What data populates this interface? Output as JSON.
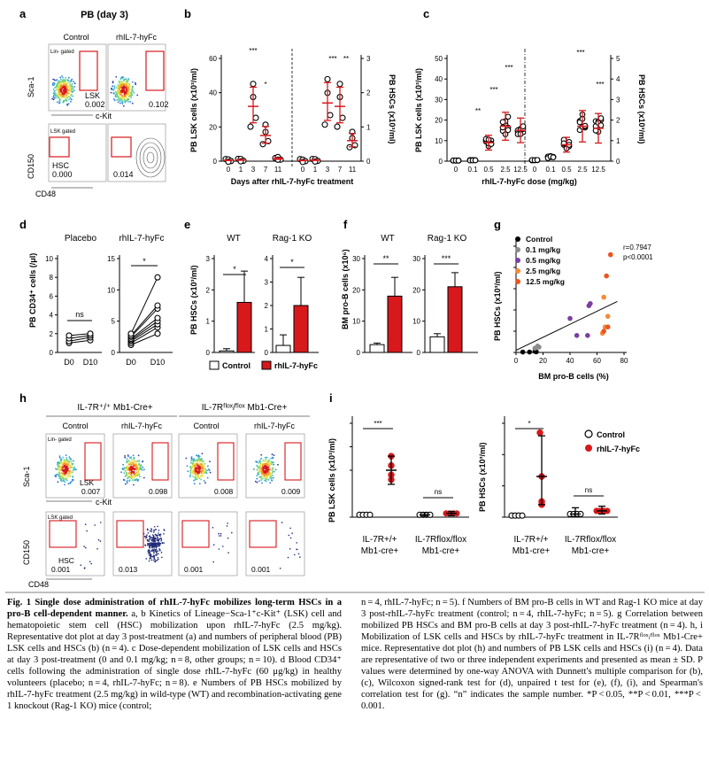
{
  "panel_letters": {
    "a": "a",
    "b": "b",
    "c": "c",
    "d": "d",
    "e": "e",
    "f": "f",
    "g": "g",
    "h": "h",
    "i": "i"
  },
  "panel_a": {
    "title": "PB (day 3)",
    "col_labels": [
      "Control",
      "rhIL-7-hyFc"
    ],
    "top_gate_label": "Lin- gated",
    "lsk_label": "LSK",
    "lsk_values": [
      "0.002",
      "0.102"
    ],
    "y_axis_top": "Sca-1",
    "x_axis_top": "c-Kit",
    "bottom_gate_label": "LSK gated",
    "hsc_label": "HSC",
    "hsc_values": [
      "0.000",
      "0.014"
    ],
    "y_axis_bottom": "CD150",
    "x_axis_bottom": "CD48"
  },
  "panel_b": {
    "y_left_label": "PB LSK cells (x10³/ml)",
    "y_right_label": "PB HSCs (x10³/ml)",
    "x_label": "Days after rhIL-7-hyFc treatment",
    "y_left_ticks": [
      "0",
      "20",
      "40",
      "60"
    ],
    "y_right_ticks": [
      "0",
      "1",
      "2",
      "3"
    ],
    "x_ticks": [
      "0",
      "1",
      "3",
      "7",
      "11"
    ],
    "stars": [
      "***",
      "*",
      "***",
      "**"
    ]
  },
  "panel_c": {
    "y_left_label": "PB LSK cells (x10³/ml)",
    "y_right_label": "PB HSCs (x10³/ml)",
    "x_label": "rhIL-7-hyFc dose (mg/kg)",
    "y_left_ticks": [
      "0",
      "10",
      "20",
      "30",
      "40",
      "50"
    ],
    "y_right_ticks": [
      "0",
      "1",
      "2",
      "3",
      "4",
      "5"
    ],
    "x_ticks": [
      "0",
      "0.1",
      "0.5",
      "2.5",
      "12.5"
    ],
    "stars": [
      "**",
      "***",
      "***",
      "***",
      "***"
    ]
  },
  "panel_d": {
    "y_label": "PB CD34⁺ cells (/μl)",
    "groups": [
      "Placebo",
      "rhIL-7-hyFc"
    ],
    "left_ticks": [
      "0",
      "2",
      "4",
      "6",
      "8",
      "10"
    ],
    "right_ticks": [
      "0",
      "5",
      "10",
      "15"
    ],
    "x_ticks": [
      "D0",
      "D10"
    ],
    "sig": [
      "ns",
      "*"
    ]
  },
  "panel_e": {
    "y_label": "PB HSCs (x10³/ml)",
    "groups": [
      "WT",
      "Rag-1 KO"
    ],
    "left_ticks": [
      "0",
      "1",
      "2",
      "3"
    ],
    "right_ticks": [
      "0",
      "1",
      "2",
      "3",
      "4"
    ],
    "sig": [
      "*",
      "*"
    ],
    "legend": [
      "Control",
      "rhIL-7-hyFc"
    ]
  },
  "panel_f": {
    "y_label": "BM pro-B cells (x10⁶)",
    "groups": [
      "WT",
      "Rag-1 KO"
    ],
    "left_ticks": [
      "0",
      "10",
      "20",
      "30"
    ],
    "right_ticks": [
      "0",
      "10",
      "20",
      "30"
    ],
    "sig": [
      "**",
      "***"
    ]
  },
  "panel_g": {
    "y_label": "PB HSCs (x10³/ml)",
    "x_label": "BM pro-B cells (%)",
    "x_ticks": [
      "0",
      "20",
      "40",
      "60",
      "80"
    ],
    "y_ticks": [
      "0",
      "1",
      "2",
      "3",
      "4",
      "5"
    ],
    "legend": [
      "Control",
      "0.1 mg/kg",
      "0.5 mg/kg",
      "2.5 mg/kg",
      "12.5 mg/kg"
    ],
    "stats": [
      "r=0.7947",
      "p<0.0001"
    ]
  },
  "panel_h": {
    "groups": [
      "IL-7R⁺/⁺ Mb1-Cre+",
      "IL-7Rᶠˡᵒˣ/ᶠˡᵒˣ Mb1-Cre+"
    ],
    "col_labels": [
      "Control",
      "rhIL-7-hyFc",
      "Control",
      "rhIL-7-hyFc"
    ],
    "top_gate_label": "Lin- gated",
    "lsk_label": "LSK",
    "lsk_values": [
      "0.007",
      "0.098",
      "0.008",
      "0.009"
    ],
    "y_axis_top": "Sca-1",
    "x_axis_top": "c-Kit",
    "bottom_gate_label": "LSK gated",
    "hsc_label": "HSC",
    "hsc_values": [
      "0.001",
      "0.013",
      "0.001",
      "0.001"
    ],
    "y_axis_bottom": "CD150",
    "x_axis_bottom": "CD48"
  },
  "panel_i": {
    "left_y_label": "PB LSK cells (x10³/ml)",
    "right_y_label": "PB HSCs (x10³/ml)",
    "left_ticks": [
      "0",
      "10",
      "15",
      "20"
    ],
    "right_ticks": [
      "0",
      "1",
      "2",
      "3"
    ],
    "sig_left": [
      "***",
      "ns"
    ],
    "sig_right": [
      "*",
      "ns"
    ],
    "legend": [
      "Control",
      "rhIL-7-hyFc"
    ],
    "x_groups": [
      "IL-7R+/+",
      "Mb1-cre+",
      "IL-7Rflox/flox",
      "Mb1-cre+"
    ]
  },
  "colors": {
    "red": "#d7191c",
    "red_dark": "#c0151a",
    "purple": "#7b3fa0",
    "orange": "#f28c38",
    "gray": "#8c8c8c",
    "black": "#000000"
  },
  "chart_data": [
    {
      "type": "scatter",
      "panel": "b",
      "title": "",
      "xlabel": "Days after rhIL-7-hyFc treatment",
      "ylabel": "PB LSK cells (x10³/ml)",
      "categories": [
        "0",
        "1",
        "3",
        "7",
        "11"
      ],
      "series": [
        {
          "name": "LSK",
          "values": [
            0.5,
            0.7,
            32,
            15,
            1.5
          ]
        }
      ],
      "ylim": [
        0,
        60
      ]
    },
    {
      "type": "scatter",
      "panel": "b-right",
      "ylabel": "PB HSCs (x10³/ml)",
      "categories": [
        "0",
        "1",
        "3",
        "7",
        "11"
      ],
      "series": [
        {
          "name": "HSC",
          "values": [
            0.02,
            0.03,
            1.7,
            1.6,
            0.6
          ]
        }
      ],
      "ylim": [
        0,
        3
      ]
    },
    {
      "type": "scatter",
      "panel": "c",
      "xlabel": "rhIL-7-hyFc dose (mg/kg)",
      "ylabel": "PB LSK cells (x10³/ml)",
      "categories": [
        "0",
        "0.1",
        "0.5",
        "2.5",
        "12.5"
      ],
      "series": [
        {
          "name": "LSK",
          "values": [
            0.3,
            0.5,
            9,
            17,
            15
          ]
        }
      ],
      "ylim": [
        0,
        50
      ]
    },
    {
      "type": "scatter",
      "panel": "c-right",
      "ylabel": "PB HSCs (x10³/ml)",
      "categories": [
        "0",
        "0.1",
        "0.5",
        "2.5",
        "12.5"
      ],
      "series": [
        {
          "name": "HSC",
          "values": [
            0.05,
            0.2,
            0.8,
            1.7,
            1.6
          ]
        }
      ],
      "ylim": [
        0,
        5
      ]
    },
    {
      "type": "line",
      "panel": "d",
      "ylabel": "PB CD34⁺ cells (/μl)",
      "categories": [
        "D0",
        "D10"
      ],
      "series": [
        {
          "name": "Placebo",
          "values": [
            1.2,
            1.6
          ]
        },
        {
          "name": "rhIL-7-hyFc",
          "values": [
            2.0,
            5.5
          ]
        }
      ]
    },
    {
      "type": "bar",
      "panel": "e",
      "ylabel": "PB HSCs (x10³/ml)",
      "categories": [
        "WT Control",
        "WT rhIL-7-hyFc",
        "Rag-1 KO Control",
        "Rag-1 KO rhIL-7-hyFc"
      ],
      "values": [
        0.05,
        1.6,
        0.3,
        2.0
      ]
    },
    {
      "type": "bar",
      "panel": "f",
      "ylabel": "BM pro-B cells (x10⁶)",
      "categories": [
        "WT Control",
        "WT rhIL-7-hyFc",
        "Rag-1 KO Control",
        "Rag-1 KO rhIL-7-hyFc"
      ],
      "values": [
        2.5,
        18,
        5,
        21
      ]
    },
    {
      "type": "scatter",
      "panel": "g",
      "xlabel": "BM pro-B cells (%)",
      "ylabel": "PB HSCs (x10³/ml)",
      "xlim": [
        0,
        80
      ],
      "ylim": [
        0,
        5
      ],
      "series": [
        {
          "name": "Control",
          "points": [
            [
              5,
              0.02
            ],
            [
              10,
              0.02
            ],
            [
              14,
              0.05
            ],
            [
              15,
              0.03
            ]
          ]
        },
        {
          "name": "0.1 mg/kg",
          "points": [
            [
              14,
              0.2
            ],
            [
              16,
              0.3
            ],
            [
              17,
              0.25
            ]
          ]
        },
        {
          "name": "0.5 mg/kg",
          "points": [
            [
              40,
              1.6
            ],
            [
              45,
              0.8
            ],
            [
              53,
              0.8
            ],
            [
              54,
              2.2
            ],
            [
              55,
              2.3
            ]
          ]
        },
        {
          "name": "2.5 mg/kg",
          "points": [
            [
              64,
              0.9
            ],
            [
              65,
              2.6
            ],
            [
              66,
              1.2
            ],
            [
              68,
              1.7
            ]
          ]
        },
        {
          "name": "12.5 mg/kg",
          "points": [
            [
              65,
              1.0
            ],
            [
              67,
              3.6
            ],
            [
              70,
              4.6
            ],
            [
              68,
              1.2
            ]
          ]
        }
      ]
    },
    {
      "type": "scatter",
      "panel": "i-left",
      "ylabel": "PB LSK cells (x10³/ml)",
      "categories": [
        "IL-7R+/+ Control",
        "IL-7R+/+ rhIL-7-hyFc",
        "IL-7Rflox/flox Control",
        "IL-7Rflox/flox rhIL-7-hyFc"
      ],
      "values": [
        0.5,
        10,
        0.5,
        0.8
      ],
      "ylim": [
        0,
        20
      ]
    },
    {
      "type": "scatter",
      "panel": "i-right",
      "ylabel": "PB HSCs (x10³/ml)",
      "categories": [
        "IL-7R+/+ Control",
        "IL-7R+/+ rhIL-7-hyFc",
        "IL-7Rflox/flox Control",
        "IL-7Rflox/flox rhIL-7-hyFc"
      ],
      "values": [
        0.05,
        1.3,
        0.1,
        0.2
      ],
      "ylim": [
        0,
        3
      ]
    }
  ],
  "caption": {
    "fig_label": "Fig. 1",
    "title": "Single dose administration of rhIL-7-hyFc mobilizes long-term HSCs in a pro-B cell-dependent manner.",
    "left_text": "a, b Kinetics of Lineage−Sca-1⁺c-Kit⁺ (LSK) cell and hematopoietic stem cell (HSC) mobilization upon rhIL-7-hyFc (2.5 mg/kg). Representative dot plot at day 3 post-treatment (a) and numbers of peripheral blood (PB) LSK cells and HSCs (b) (n = 4). c Dose-dependent mobilization of LSK cells and HSCs at day 3 post-treatment (0 and 0.1 mg/kg; n = 8, other groups; n = 10). d Blood CD34⁺ cells following the administration of single dose rhIL-7-hyFc (60 μg/kg) in healthy volunteers (placebo; n = 4, rhIL-7-hyFc; n = 8). e Numbers of PB HSCs mobilized by rhIL-7-hyFc treatment (2.5 mg/kg) in wild-type (WT) and recombination-activating gene 1 knockout (Rag-1 KO) mice (control;",
    "right_text": "n = 4, rhIL-7-hyFc; n = 5). f Numbers of BM pro-B cells in WT and Rag-1 KO mice at day 3 post-rhIL-7-hyFc treatment (control; n = 4, rhIL-7-hyFc; n = 5). g Correlation between mobilized PB HSCs and BM pro-B cells at day 3 post-rhIL-7-hyFc treatment (n = 4). h, i Mobilization of LSK cells and HSCs by rhIL-7-hyFc treatment in IL-7Rᶠˡᵒˣ/ᶠˡᵒˣ Mb1-Cre+ mice. Representative dot plot (h) and numbers of PB LSK cells and HSCs (i) (n = 4). Data are representative of two or three independent experiments and presented as mean ± SD. P values were determined by one-way ANOVA with Dunnett's multiple comparison for (b), (c), Wilcoxon signed-rank test for (d), unpaired t test for (e), (f), (i), and Spearman's correlation test for (g). “n” indicates the sample number. *P < 0.05, **P < 0.01, ***P < 0.001."
  }
}
